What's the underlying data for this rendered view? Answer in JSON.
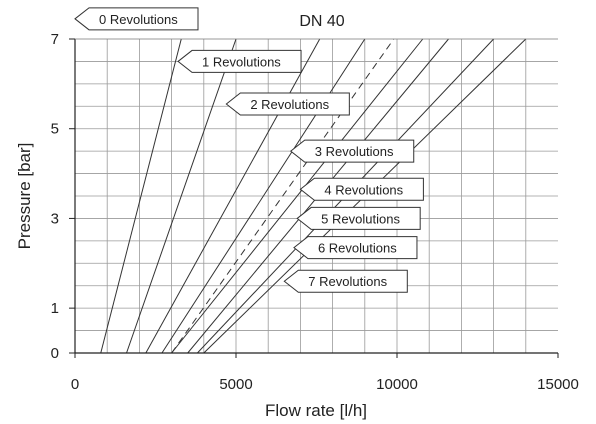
{
  "chart_data": {
    "type": "line",
    "title": "DN 40",
    "xlabel": "Flow rate [l/h]",
    "ylabel": "Pressure [bar]",
    "xlim": [
      0,
      15000
    ],
    "ylim": [
      0,
      7
    ],
    "x_ticks": [
      0,
      5000,
      10000,
      15000
    ],
    "x_tick_labels": [
      "0",
      "5000",
      "10000",
      "15000"
    ],
    "y_ticks": [
      0,
      1,
      3,
      5,
      7
    ],
    "y_tick_labels": [
      "0",
      "1",
      "3",
      "5",
      "7"
    ],
    "grid": true,
    "series": [
      {
        "name": "0 Revolutions",
        "style": "solid",
        "x": [
          800,
          3300
        ],
        "y": [
          0,
          7
        ]
      },
      {
        "name": "1 Revolutions",
        "style": "solid",
        "x": [
          1600,
          5000
        ],
        "y": [
          0,
          7
        ]
      },
      {
        "name": "2 Revolutions",
        "style": "solid",
        "x": [
          2200,
          7600
        ],
        "y": [
          0,
          7
        ]
      },
      {
        "name": "",
        "style": "solid",
        "x": [
          2700,
          9000
        ],
        "y": [
          0,
          7
        ]
      },
      {
        "name": "3 Revolutions",
        "style": "dashed",
        "x": [
          3000,
          9900
        ],
        "y": [
          0,
          7
        ]
      },
      {
        "name": "4 Revolutions",
        "style": "solid",
        "x": [
          3000,
          10800
        ],
        "y": [
          0,
          7
        ]
      },
      {
        "name": "5 Revolutions",
        "style": "solid",
        "x": [
          3500,
          11600
        ],
        "y": [
          0,
          7
        ]
      },
      {
        "name": "6 Revolutions",
        "style": "solid",
        "x": [
          3800,
          13000
        ],
        "y": [
          0,
          7
        ]
      },
      {
        "name": "7 Revolutions",
        "style": "solid",
        "x": [
          4000,
          14000
        ],
        "y": [
          0,
          7
        ]
      }
    ],
    "callouts": [
      {
        "text": "0 Revolutions",
        "x": 0,
        "y": 7.45
      },
      {
        "text": "1 Revolutions",
        "x": 3200,
        "y": 6.5
      },
      {
        "text": "2 Revolutions",
        "x": 4700,
        "y": 5.55
      },
      {
        "text": "3 Revolutions",
        "x": 6700,
        "y": 4.5
      },
      {
        "text": "4 Revolutions",
        "x": 7000,
        "y": 3.65
      },
      {
        "text": "5 Revolutions",
        "x": 6900,
        "y": 3.0
      },
      {
        "text": "6 Revolutions",
        "x": 6800,
        "y": 2.35
      },
      {
        "text": "7 Revolutions",
        "x": 6500,
        "y": 1.6
      }
    ]
  }
}
